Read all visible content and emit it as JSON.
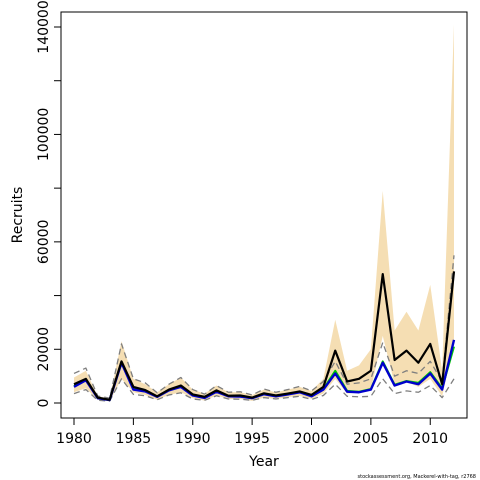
{
  "chart_data": {
    "type": "line",
    "title": "",
    "xlabel": "Year",
    "ylabel": "Recruits",
    "caption": "stockassessment.org, Mackerel-with-tag, r2768",
    "xlim": [
      1980,
      2012
    ],
    "ylim": [
      0,
      140000
    ],
    "xticks": [
      1980,
      1985,
      1990,
      1995,
      2000,
      2005,
      2010
    ],
    "yticks": [
      0,
      20000,
      60000,
      100000,
      140000
    ],
    "grid": false,
    "legend": "none",
    "colors": {
      "band": "#f5deb3",
      "main": "#000000",
      "blue": "#0000cd",
      "green": "#00c800",
      "dashed": "#7f7f7f"
    },
    "x": [
      1980,
      1981,
      1982,
      1983,
      1984,
      1985,
      1986,
      1987,
      1988,
      1989,
      1990,
      1991,
      1992,
      1993,
      1994,
      1995,
      1996,
      1997,
      1998,
      1999,
      2000,
      2001,
      2002,
      2003,
      2004,
      2005,
      2006,
      2007,
      2008,
      2009,
      2010,
      2011,
      2012
    ],
    "band": {
      "upper": [
        9500,
        12000,
        2500,
        1800,
        23000,
        9000,
        7000,
        4000,
        7000,
        9500,
        5000,
        3500,
        6500,
        4000,
        4000,
        3000,
        5000,
        4000,
        5000,
        6000,
        4500,
        9000,
        31000,
        12000,
        14000,
        20000,
        79000,
        27000,
        34000,
        27000,
        44000,
        12000,
        141000
      ],
      "lower": [
        4000,
        5500,
        1200,
        600,
        9000,
        4000,
        3000,
        1200,
        3000,
        4000,
        1800,
        900,
        2800,
        1500,
        1500,
        800,
        2000,
        1500,
        2200,
        2600,
        1600,
        3500,
        9000,
        3500,
        4000,
        5000,
        25000,
        7000,
        8000,
        6000,
        9000,
        2500,
        22000
      ]
    },
    "series": [
      {
        "style": "solid-main",
        "values": [
          7000,
          9000,
          2000,
          1200,
          15500,
          6000,
          4800,
          2500,
          5000,
          6500,
          3200,
          2300,
          4700,
          2700,
          2800,
          2000,
          3600,
          2800,
          3500,
          4300,
          3000,
          6000,
          19500,
          8000,
          9000,
          12000,
          48000,
          16000,
          19500,
          15000,
          22000,
          7000,
          49000
        ]
      },
      {
        "style": "solid-blue",
        "values": [
          6000,
          8500,
          1800,
          1100,
          15000,
          5000,
          4300,
          2300,
          4700,
          6000,
          2800,
          1900,
          4200,
          2500,
          2400,
          1800,
          3300,
          2500,
          3200,
          4000,
          2500,
          5000,
          11000,
          4200,
          4000,
          5000,
          15000,
          6500,
          8000,
          7000,
          11000,
          5000,
          23500
        ]
      },
      {
        "style": "solid-green",
        "values": [
          6300,
          8700,
          1800,
          1100,
          15200,
          5200,
          4400,
          2300,
          4800,
          6100,
          2900,
          2000,
          4300,
          2500,
          2500,
          1800,
          3300,
          2600,
          3300,
          4100,
          2600,
          5200,
          12000,
          4500,
          4200,
          5200,
          15500,
          6800,
          8200,
          7500,
          11500,
          5500,
          21000
        ]
      },
      {
        "style": "dashed",
        "values": [
          11000,
          13000,
          2600,
          1800,
          22000,
          9000,
          7500,
          3800,
          7000,
          9500,
          5000,
          3300,
          6500,
          4000,
          4200,
          3000,
          5200,
          4000,
          5000,
          6200,
          4500,
          8000,
          15500,
          7000,
          7500,
          9000,
          22500,
          10000,
          12000,
          11000,
          15500,
          8000,
          55000
        ]
      },
      {
        "style": "dashed",
        "values": [
          3500,
          5000,
          1000,
          700,
          9000,
          3200,
          2700,
          1200,
          3000,
          3800,
          1500,
          1000,
          2700,
          1500,
          1400,
          1000,
          2000,
          1500,
          2000,
          2500,
          1300,
          2800,
          7000,
          2500,
          2300,
          2500,
          9000,
          3500,
          4500,
          4000,
          6500,
          2000,
          9000
        ]
      }
    ]
  }
}
